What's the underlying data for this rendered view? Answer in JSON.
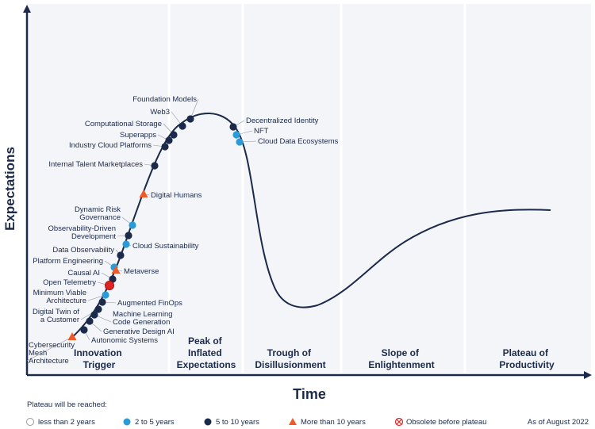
{
  "colors": {
    "navy": "#1b2a4a",
    "blue": "#2b9bd8",
    "dark": "#1b2a4a",
    "orange": "#ef5a28",
    "red": "#e02424",
    "band": "#f4f5f8",
    "divider": "#ffffff"
  },
  "chart_data": {
    "type": "hype-cycle",
    "xlabel": "Time",
    "ylabel": "Expectations",
    "phases": [
      "Innovation Trigger",
      "Peak of Inflated Expectations",
      "Trough of Disillusionment",
      "Slope of Enlightenment",
      "Plateau of Productivity"
    ],
    "technologies": [
      {
        "name": "Foundation Models",
        "category": "5 to 10 years"
      },
      {
        "name": "Web3",
        "category": "5 to 10 years"
      },
      {
        "name": "Computational Storage",
        "category": "5 to 10 years"
      },
      {
        "name": "Superapps",
        "category": "5 to 10 years"
      },
      {
        "name": "Industry Cloud Platforms",
        "category": "5 to 10 years"
      },
      {
        "name": "Internal Talent Marketplaces",
        "category": "5 to 10 years"
      },
      {
        "name": "Digital Humans",
        "category": "More than 10 years"
      },
      {
        "name": "Dynamic Risk Governance",
        "category": "2 to 5 years"
      },
      {
        "name": "Observability-Driven Development",
        "category": "5 to 10 years"
      },
      {
        "name": "Cloud Sustainability",
        "category": "2 to 5 years"
      },
      {
        "name": "Data Observability",
        "category": "5 to 10 years"
      },
      {
        "name": "Platform Engineering",
        "category": "2 to 5 years"
      },
      {
        "name": "Metaverse",
        "category": "More than 10 years"
      },
      {
        "name": "Causal AI",
        "category": "5 to 10 years"
      },
      {
        "name": "Open Telemetry",
        "category": "Obsolete before plateau"
      },
      {
        "name": "Minimum Viable Architecture",
        "category": "2 to 5 years"
      },
      {
        "name": "Augmented FinOps",
        "category": "5 to 10 years"
      },
      {
        "name": "Digital Twin of a Customer",
        "category": "5 to 10 years"
      },
      {
        "name": "Machine Learning Code Generation",
        "category": "5 to 10 years"
      },
      {
        "name": "Generative Design AI",
        "category": "5 to 10 years"
      },
      {
        "name": "Autonomic Systems",
        "category": "5 to 10 years"
      },
      {
        "name": "Cybersecurity Mesh Architecture",
        "category": "More than 10 years"
      },
      {
        "name": "Decentralized Identity",
        "category": "5 to 10 years"
      },
      {
        "name": "NFT",
        "category": "2 to 5 years"
      },
      {
        "name": "Cloud Data Ecosystems",
        "category": "2 to 5 years"
      }
    ]
  },
  "legend": {
    "title": "Plateau will be reached:",
    "items": [
      {
        "label": "less than 2 years",
        "marker": "hollow-circle"
      },
      {
        "label": "2 to 5 years",
        "marker": "blue-circle"
      },
      {
        "label": "5 to 10 years",
        "marker": "dark-circle"
      },
      {
        "label": "More than 10 years",
        "marker": "orange-triangle"
      },
      {
        "label": "Obsolete before plateau",
        "marker": "crossed-circle"
      }
    ]
  },
  "as_of": "As of August 2022"
}
